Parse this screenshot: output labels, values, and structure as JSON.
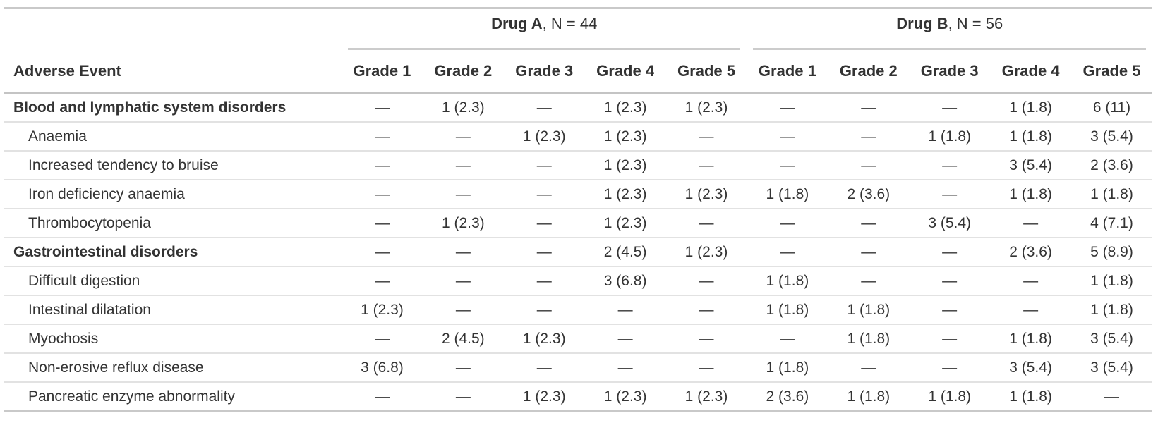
{
  "colors": {
    "text": "#333333",
    "rule_strong": "#c9c9c9",
    "rule_medium": "#c4c4c4",
    "rule_light": "#e2e2e2",
    "background": "#ffffff"
  },
  "chart_data": {
    "type": "table",
    "stub_header": "Adverse Event",
    "spanners": [
      {
        "name_bold": "Drug A",
        "name_rest": ", N = 44"
      },
      {
        "name_bold": "Drug B",
        "name_rest": ", N = 56"
      }
    ],
    "grade_headers": [
      "Grade 1",
      "Grade 2",
      "Grade 3",
      "Grade 4",
      "Grade 5"
    ],
    "rows": [
      {
        "label": "Blood and lymphatic system disorders",
        "group": true,
        "drug_a": [
          "—",
          "1 (2.3)",
          "—",
          "1 (2.3)",
          "1 (2.3)"
        ],
        "drug_b": [
          "—",
          "—",
          "—",
          "1 (1.8)",
          "6 (11)"
        ]
      },
      {
        "label": "Anaemia",
        "group": false,
        "drug_a": [
          "—",
          "—",
          "1 (2.3)",
          "1 (2.3)",
          "—"
        ],
        "drug_b": [
          "—",
          "—",
          "1 (1.8)",
          "1 (1.8)",
          "3 (5.4)"
        ]
      },
      {
        "label": "Increased tendency to bruise",
        "group": false,
        "drug_a": [
          "—",
          "—",
          "—",
          "1 (2.3)",
          "—"
        ],
        "drug_b": [
          "—",
          "—",
          "—",
          "3 (5.4)",
          "2 (3.6)"
        ]
      },
      {
        "label": "Iron deficiency anaemia",
        "group": false,
        "drug_a": [
          "—",
          "—",
          "—",
          "1 (2.3)",
          "1 (2.3)"
        ],
        "drug_b": [
          "1 (1.8)",
          "2 (3.6)",
          "—",
          "1 (1.8)",
          "1 (1.8)"
        ]
      },
      {
        "label": "Thrombocytopenia",
        "group": false,
        "drug_a": [
          "—",
          "1 (2.3)",
          "—",
          "1 (2.3)",
          "—"
        ],
        "drug_b": [
          "—",
          "—",
          "3 (5.4)",
          "—",
          "4 (7.1)"
        ]
      },
      {
        "label": "Gastrointestinal disorders",
        "group": true,
        "drug_a": [
          "—",
          "—",
          "—",
          "2 (4.5)",
          "1 (2.3)"
        ],
        "drug_b": [
          "—",
          "—",
          "—",
          "2 (3.6)",
          "5 (8.9)"
        ]
      },
      {
        "label": "Difficult digestion",
        "group": false,
        "drug_a": [
          "—",
          "—",
          "—",
          "3 (6.8)",
          "—"
        ],
        "drug_b": [
          "1 (1.8)",
          "—",
          "—",
          "—",
          "1 (1.8)"
        ]
      },
      {
        "label": "Intestinal dilatation",
        "group": false,
        "drug_a": [
          "1 (2.3)",
          "—",
          "—",
          "—",
          "—"
        ],
        "drug_b": [
          "1 (1.8)",
          "1 (1.8)",
          "—",
          "—",
          "1 (1.8)"
        ]
      },
      {
        "label": "Myochosis",
        "group": false,
        "drug_a": [
          "—",
          "2 (4.5)",
          "1 (2.3)",
          "—",
          "—"
        ],
        "drug_b": [
          "—",
          "1 (1.8)",
          "—",
          "1 (1.8)",
          "3 (5.4)"
        ]
      },
      {
        "label": "Non-erosive reflux disease",
        "group": false,
        "drug_a": [
          "3 (6.8)",
          "—",
          "—",
          "—",
          "—"
        ],
        "drug_b": [
          "1 (1.8)",
          "—",
          "—",
          "3 (5.4)",
          "3 (5.4)"
        ]
      },
      {
        "label": "Pancreatic enzyme abnormality",
        "group": false,
        "drug_a": [
          "—",
          "—",
          "1 (2.3)",
          "1 (2.3)",
          "1 (2.3)"
        ],
        "drug_b": [
          "2 (3.6)",
          "1 (1.8)",
          "1 (1.8)",
          "1 (1.8)",
          "—"
        ]
      }
    ]
  }
}
